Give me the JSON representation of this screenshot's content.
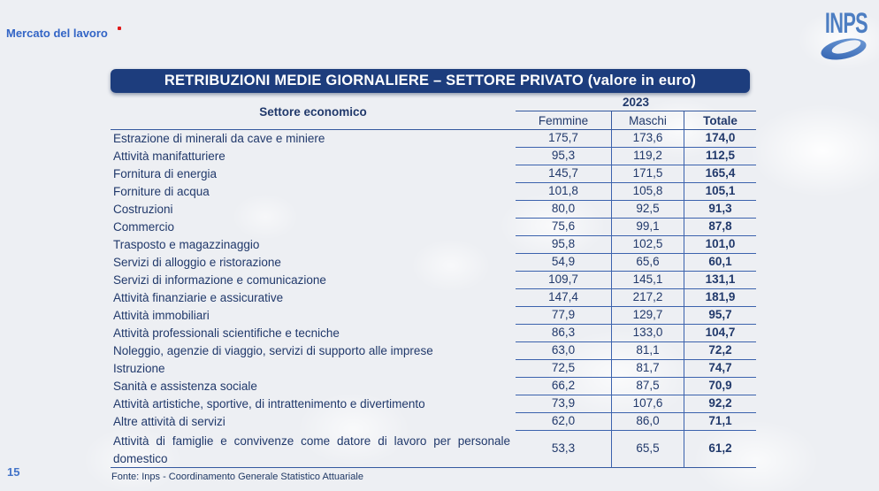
{
  "page": {
    "breadcrumb": "Mercato del lavoro",
    "page_number": "15",
    "logo_text": "INPS"
  },
  "table": {
    "title": "RETRIBUZIONI MEDIE GIORNALIERE – SETTORE PRIVATO (valore in euro)",
    "header": {
      "sector_label": "Settore economico",
      "year": "2023",
      "columns": [
        "Femmine",
        "Maschi",
        "Totale"
      ]
    },
    "rows": [
      {
        "sector": "Estrazione di minerali da cave e miniere",
        "femmine": "175,7",
        "maschi": "173,6",
        "totale": "174,0"
      },
      {
        "sector": "Attività manifatturiere",
        "femmine": "95,3",
        "maschi": "119,2",
        "totale": "112,5"
      },
      {
        "sector": "Fornitura di energia",
        "femmine": "145,7",
        "maschi": "171,5",
        "totale": "165,4"
      },
      {
        "sector": "Forniture di acqua",
        "femmine": "101,8",
        "maschi": "105,8",
        "totale": "105,1"
      },
      {
        "sector": "Costruzioni",
        "femmine": "80,0",
        "maschi": "92,5",
        "totale": "91,3"
      },
      {
        "sector": "Commercio",
        "femmine": "75,6",
        "maschi": "99,1",
        "totale": "87,8"
      },
      {
        "sector": "Trasposto e magazzinaggio",
        "femmine": "95,8",
        "maschi": "102,5",
        "totale": "101,0"
      },
      {
        "sector": "Servizi di alloggio e ristorazione",
        "femmine": "54,9",
        "maschi": "65,6",
        "totale": "60,1"
      },
      {
        "sector": "Servizi di informazione e comunicazione",
        "femmine": "109,7",
        "maschi": "145,1",
        "totale": "131,1"
      },
      {
        "sector": "Attività finanziarie e assicurative",
        "femmine": "147,4",
        "maschi": "217,2",
        "totale": "181,9"
      },
      {
        "sector": "Attività immobiliari",
        "femmine": "77,9",
        "maschi": "129,7",
        "totale": "95,7"
      },
      {
        "sector": "Attività professionali scientifiche e tecniche",
        "femmine": "86,3",
        "maschi": "133,0",
        "totale": "104,7"
      },
      {
        "sector": "Noleggio, agenzie di viaggio, servizi di supporto alle imprese",
        "femmine": "63,0",
        "maschi": "81,1",
        "totale": "72,2"
      },
      {
        "sector": "Istruzione",
        "femmine": "72,5",
        "maschi": "81,7",
        "totale": "74,7"
      },
      {
        "sector": "Sanità e assistenza sociale",
        "femmine": "66,2",
        "maschi": "87,5",
        "totale": "70,9"
      },
      {
        "sector": "Attività artistiche, sportive, di intrattenimento e divertimento",
        "femmine": "73,9",
        "maschi": "107,6",
        "totale": "92,2"
      },
      {
        "sector": "Altre attività di servizi",
        "femmine": "62,0",
        "maschi": "86,0",
        "totale": "71,1"
      },
      {
        "sector": "Attività di famiglie e convivenze come datore di lavoro per personale domestico",
        "femmine": "53,3",
        "maschi": "65,5",
        "totale": "61,2"
      }
    ],
    "fonte": "Fonte: Inps - Coordinamento Generale Statistico Attuariale"
  },
  "colors": {
    "title_bar_bg": "#1d3d7d",
    "title_text": "#ffffff",
    "body_text": "#21396b",
    "table_lines": "#3b62ad",
    "breadcrumb_blue": "#3365c6",
    "logo_blue": "#4d7ec2",
    "background": "#edeff3",
    "marker_red": "#e01a1a"
  }
}
